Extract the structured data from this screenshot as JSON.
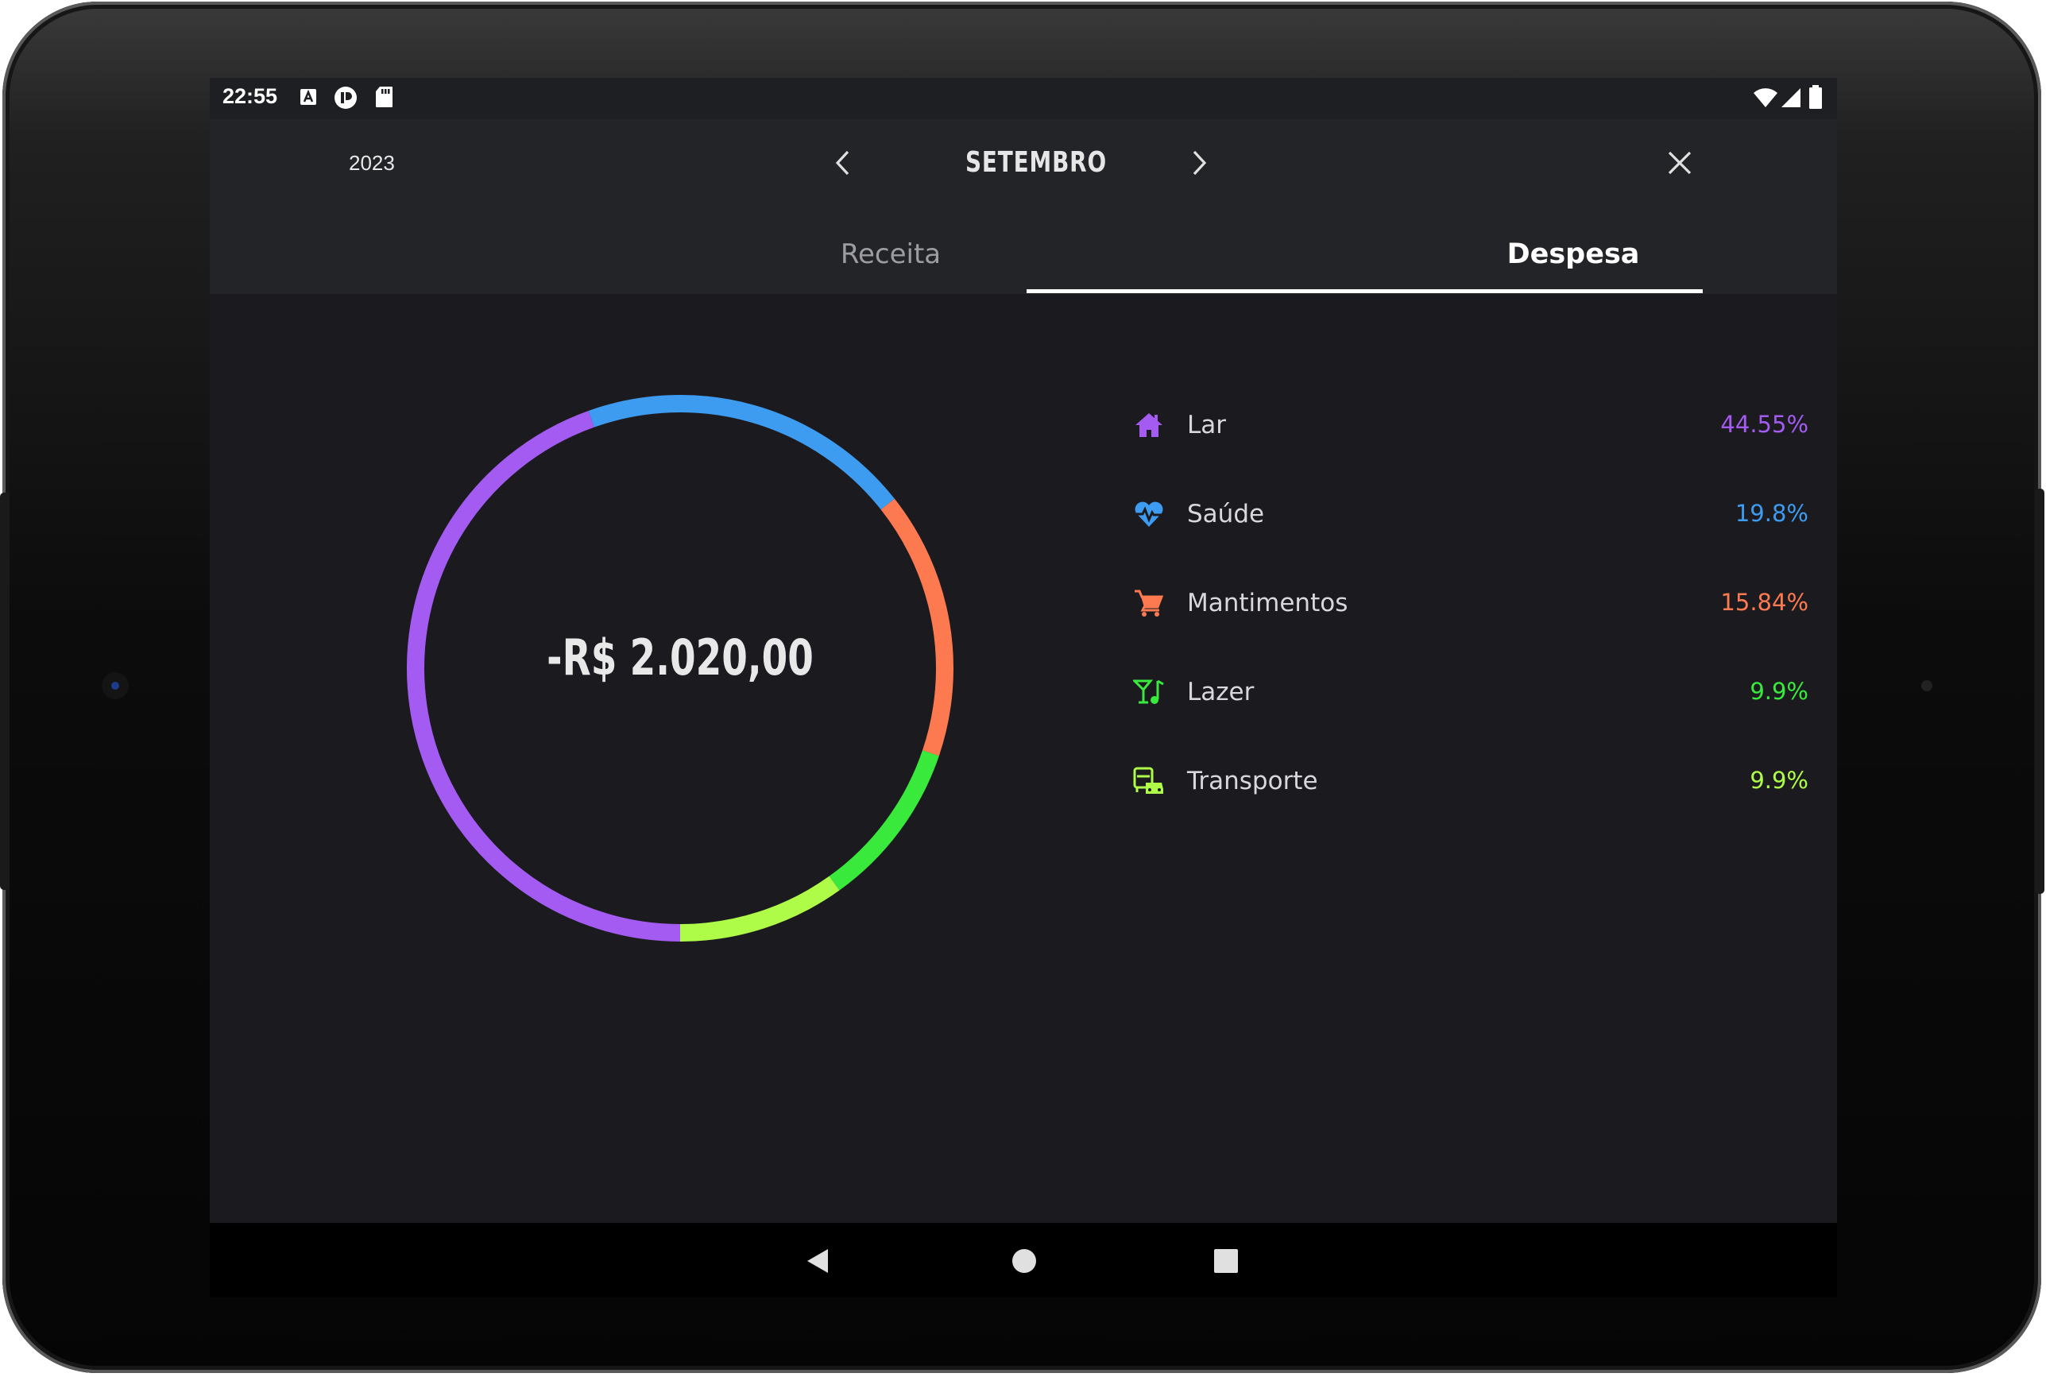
{
  "status_bar": {
    "time": "22:55",
    "left_icons": [
      "a-box-icon",
      "pause-record-icon",
      "sd-card-icon"
    ],
    "right_icons": [
      "wifi-icon",
      "cell-signal-icon",
      "battery-icon"
    ]
  },
  "header": {
    "year": "2023",
    "month": "SETEMBRO",
    "prev_icon": "chevron-left-icon",
    "next_icon": "chevron-right-icon",
    "close_icon": "close-icon"
  },
  "tabs": {
    "receita": "Receita",
    "despesa": "Despesa",
    "active": "despesa"
  },
  "summary": {
    "total": "-R$ 2.020,00"
  },
  "categories": [
    {
      "label": "Lar",
      "percent": "44.55%",
      "color": "#a35bf2",
      "icon": "house-icon"
    },
    {
      "label": "Saúde",
      "percent": "19.8%",
      "color": "#3d9bf0",
      "icon": "heart-pulse-icon"
    },
    {
      "label": "Mantimentos",
      "percent": "15.84%",
      "color": "#fd7a50",
      "icon": "shopping-cart-icon"
    },
    {
      "label": "Lazer",
      "percent": "9.9%",
      "color": "#39ea3c",
      "icon": "drink-music-icon"
    },
    {
      "label": "Transporte",
      "percent": "9.9%",
      "color": "#aefc48",
      "icon": "bus-car-icon"
    }
  ],
  "chart_data": {
    "type": "pie",
    "variant": "donut",
    "categories": [
      "Lar",
      "Saúde",
      "Mantimentos",
      "Lazer",
      "Transporte"
    ],
    "values": [
      44.55,
      19.8,
      15.84,
      9.9,
      9.9
    ],
    "colors": [
      "#a35bf2",
      "#3d9bf0",
      "#fd7a50",
      "#39ea3c",
      "#aefc48"
    ],
    "center_label": "-R$ 2.020,00",
    "start": "bottom, clockwise"
  },
  "system_nav": [
    "back-icon",
    "home-icon",
    "recents-icon"
  ],
  "colors": {
    "screen_bg": "#1b1b1f",
    "header_bg": "#232428",
    "tab_active": "#ffffff",
    "tab_inactive": "#9c9ca2"
  }
}
